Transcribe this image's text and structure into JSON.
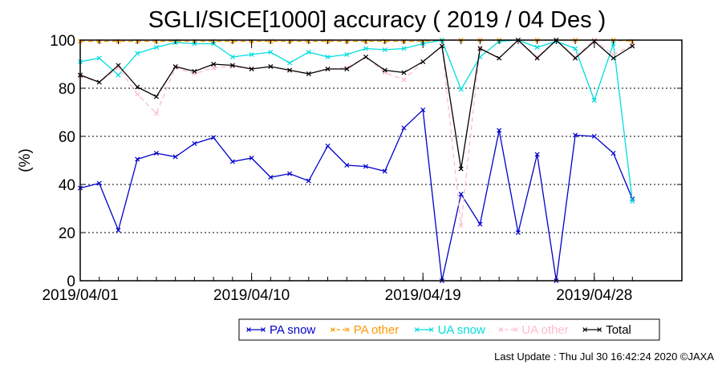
{
  "chart_data": {
    "type": "line",
    "title": "SGLI/SICE[1000] accuracy ( 2019 / 04 Des )",
    "ylabel": "(%)",
    "xlabel": "",
    "ylim": [
      0,
      100
    ],
    "yticks": [
      "0",
      "20",
      "40",
      "60",
      "80",
      "100"
    ],
    "xticks": [
      {
        "day": 1,
        "label": "2019/04/01"
      },
      {
        "day": 10,
        "label": "2019/04/10"
      },
      {
        "day": 19,
        "label": "2019/04/19"
      },
      {
        "day": 28,
        "label": "2019/04/28"
      }
    ],
    "x_days": [
      1,
      2,
      3,
      4,
      5,
      6,
      7,
      8,
      9,
      10,
      11,
      12,
      13,
      14,
      15,
      16,
      17,
      18,
      19,
      20,
      21,
      22,
      23,
      24,
      25,
      26,
      27,
      28,
      29,
      30
    ],
    "grid": "horizontal-dotted",
    "legend_position": "bottom",
    "series": [
      {
        "name": "PA snow",
        "color": "#0000cc",
        "dash": "",
        "values": [
          38.5,
          40.5,
          21,
          50.5,
          53,
          51.5,
          57,
          59.5,
          49.5,
          51,
          43,
          44.5,
          41.5,
          56,
          48,
          47.5,
          45.5,
          63.5,
          71,
          0,
          36,
          23.5,
          62.5,
          20,
          52.5,
          0,
          60.5,
          60,
          53,
          34
        ]
      },
      {
        "name": "PA other",
        "color": "#ff9900",
        "dash": "6,4",
        "values": [
          99.5,
          99.5,
          99.5,
          99.5,
          99.5,
          99.5,
          99.5,
          99.5,
          99.5,
          99.5,
          99.5,
          99.5,
          99.5,
          99.5,
          99.5,
          99.5,
          99.5,
          99.5,
          99.5,
          100,
          100,
          100,
          100,
          100,
          100,
          100,
          100,
          100,
          100,
          99.5
        ]
      },
      {
        "name": "UA snow",
        "color": "#00dddd",
        "dash": "",
        "values": [
          91,
          92.5,
          85.5,
          94.5,
          97,
          99,
          98.5,
          98.5,
          93,
          94,
          95,
          90.5,
          95,
          93,
          94,
          96.5,
          96,
          96.5,
          98.5,
          100,
          79.5,
          93,
          99.5,
          100,
          97,
          99.5,
          96.5,
          75,
          98.5,
          33
        ]
      },
      {
        "name": "UA other",
        "color": "#ffbbcc",
        "dash": "6,4",
        "values": [
          85,
          82.5,
          88.5,
          77.5,
          69.5,
          88.5,
          86,
          88.5,
          89,
          88,
          89,
          87.5,
          86,
          88,
          88.5,
          93,
          86.5,
          83.5,
          91,
          97.5,
          23,
          97,
          92.5,
          100,
          93,
          100,
          93,
          100,
          94,
          98
        ]
      },
      {
        "name": "Total",
        "color": "#000000",
        "dash": "",
        "values": [
          85.5,
          82.5,
          89.5,
          80.5,
          76.5,
          89,
          87,
          90,
          89.5,
          88,
          89,
          87.5,
          86,
          88,
          88,
          93,
          87.5,
          86.5,
          91,
          97.5,
          46.5,
          96.5,
          92.5,
          100,
          92.5,
          100,
          92.5,
          99.5,
          92.5,
          97.5
        ]
      }
    ]
  },
  "footer": {
    "last_update": "Last Update : Thu Jul 30 16:42:24 2020  ©JAXA"
  }
}
